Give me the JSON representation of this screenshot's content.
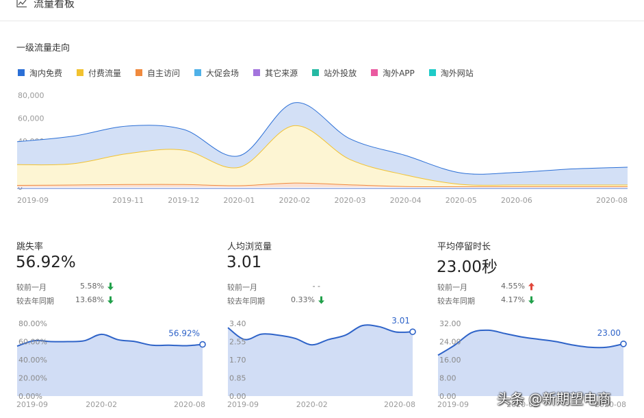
{
  "header": {
    "title": "流量看板",
    "icon": "line-chart-icon"
  },
  "main_chart": {
    "section_title": "一级流量走向",
    "legend": [
      {
        "label": "淘内免费",
        "color": "#2b6fd6"
      },
      {
        "label": "付费流量",
        "color": "#f2c230"
      },
      {
        "label": "自主访问",
        "color": "#f08a3e"
      },
      {
        "label": "大促会场",
        "color": "#4fb1e8"
      },
      {
        "label": "其它来源",
        "color": "#a374dd"
      },
      {
        "label": "站外投放",
        "color": "#25b9a3"
      },
      {
        "label": "淘外APP",
        "color": "#ea5aa0"
      },
      {
        "label": "淘外网站",
        "color": "#1ecbc8"
      }
    ]
  },
  "chart_data": [
    {
      "type": "area",
      "title": "一级流量走向",
      "x": [
        "2019-09",
        "2019-10",
        "2019-11",
        "2019-12",
        "2020-01",
        "2020-02",
        "2020-03",
        "2020-04",
        "2020-05",
        "2020-06",
        "2020-07",
        "2020-08"
      ],
      "x_tick_labels": [
        "2019-09",
        "2019-11",
        "2019-12",
        "2020-01",
        "2020-02",
        "2020-03",
        "2020-04",
        "2020-05",
        "2020-06",
        "2020-08"
      ],
      "y_tick_labels": [
        "80,000",
        "60,000",
        "40,000",
        "20,000",
        "0"
      ],
      "ylim": [
        0,
        80000
      ],
      "stacked": true,
      "series": [
        {
          "name": "自主访问",
          "color": "#f08a3e",
          "values": [
            1500,
            1800,
            2200,
            2200,
            1200,
            3500,
            2000,
            500,
            300,
            300,
            300,
            300
          ]
        },
        {
          "name": "付费流量",
          "color": "#f2c230",
          "values": [
            18000,
            18500,
            27000,
            30000,
            16000,
            50000,
            22000,
            10000,
            2000,
            1500,
            1500,
            1500
          ]
        },
        {
          "name": "淘内免费",
          "color": "#2b6fd6",
          "values": [
            20000,
            24000,
            24000,
            18000,
            10000,
            20000,
            18000,
            17000,
            10000,
            11000,
            14000,
            15500
          ]
        }
      ],
      "grid": false,
      "legend_position": "top-left"
    },
    {
      "type": "area",
      "title": "跳失率",
      "x": [
        "2019-09",
        "2019-10",
        "2019-11",
        "2019-12",
        "2020-01",
        "2020-02",
        "2020-03",
        "2020-04",
        "2020-05",
        "2020-06",
        "2020-07",
        "2020-08"
      ],
      "x_tick_labels": [
        "2019-09",
        "2020-02",
        "2020-08"
      ],
      "y_tick_labels": [
        "80.00%",
        "60.00%",
        "40.00%",
        "20.00%",
        "0.00%"
      ],
      "ylim": [
        0,
        80
      ],
      "values": [
        55,
        61,
        60,
        60,
        61,
        68,
        62,
        60,
        56,
        56,
        55.5,
        56.92
      ],
      "end_label": "56.92%"
    },
    {
      "type": "area",
      "title": "人均浏览量",
      "x": [
        "2019-09",
        "2019-10",
        "2019-11",
        "2019-12",
        "2020-01",
        "2020-02",
        "2020-03",
        "2020-04",
        "2020-05",
        "2020-06",
        "2020-07",
        "2020-08"
      ],
      "x_tick_labels": [
        "2019-09",
        "2020-02",
        "2020-08"
      ],
      "y_tick_labels": [
        "3.40",
        "2.55",
        "1.70",
        "0.85",
        "0.00"
      ],
      "ylim": [
        0,
        3.4
      ],
      "values": [
        3.2,
        2.65,
        2.9,
        2.85,
        2.7,
        2.4,
        2.65,
        2.85,
        3.3,
        3.25,
        3.0,
        3.01
      ],
      "end_label": "3.01"
    },
    {
      "type": "area",
      "title": "平均停留时长",
      "x": [
        "2019-09",
        "2019-10",
        "2019-11",
        "2019-12",
        "2020-01",
        "2020-02",
        "2020-03",
        "2020-04",
        "2020-05",
        "2020-06",
        "2020-07",
        "2020-08"
      ],
      "x_tick_labels": [
        "2019-09",
        "2020-02",
        "2020-08"
      ],
      "y_tick_labels": [
        "32.00",
        "24.00",
        "16.00",
        "8.00",
        "0.00"
      ],
      "ylim": [
        0,
        32
      ],
      "values": [
        18,
        22.5,
        28,
        29,
        27.5,
        26,
        25,
        24,
        22.5,
        21.5,
        21.5,
        23.0
      ],
      "end_label": "23.00"
    }
  ],
  "cards": [
    {
      "title": "跳失率",
      "value": "56.92%",
      "compare": [
        {
          "label": "较前一月",
          "value": "5.58%",
          "trend": "down",
          "color": "#21a04a"
        },
        {
          "label": "较去年同期",
          "value": "13.68%",
          "trend": "down",
          "color": "#21a04a"
        }
      ]
    },
    {
      "title": "人均浏览量",
      "value": "3.01",
      "compare": [
        {
          "label": "较前一月",
          "value": "- -",
          "trend": "none",
          "color": "#21a04a"
        },
        {
          "label": "较去年同期",
          "value": "0.33%",
          "trend": "down",
          "color": "#21a04a"
        }
      ]
    },
    {
      "title": "平均停留时长",
      "value": "23.00秒",
      "compare": [
        {
          "label": "较前一月",
          "value": "4.55%",
          "trend": "up",
          "color": "#e0463a"
        },
        {
          "label": "较去年同期",
          "value": "4.17%",
          "trend": "down",
          "color": "#21a04a"
        }
      ]
    }
  ],
  "watermark": "头条 @新期望电商"
}
